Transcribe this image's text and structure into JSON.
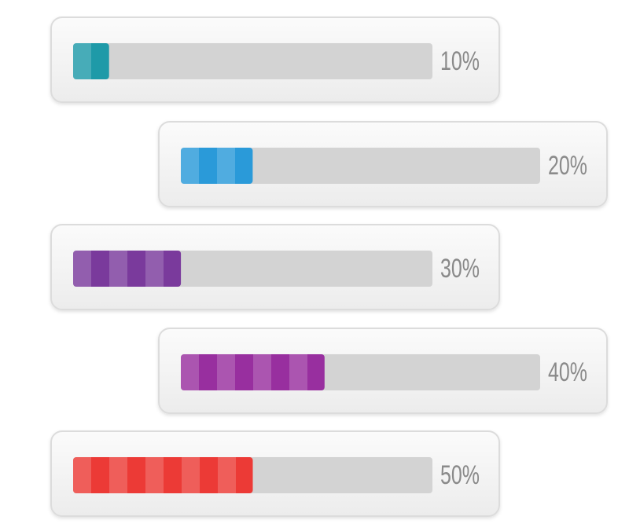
{
  "chart_data": {
    "type": "progress",
    "values": [
      10,
      20,
      30,
      40,
      50
    ],
    "value_labels": [
      "10%",
      "20%",
      "30%",
      "40%",
      "50%"
    ],
    "colors": [
      "#1e9aa8",
      "#2a9ad9",
      "#7a3a9c",
      "#982f9f",
      "#ec3a36"
    ],
    "xlim": [
      0,
      100
    ]
  }
}
